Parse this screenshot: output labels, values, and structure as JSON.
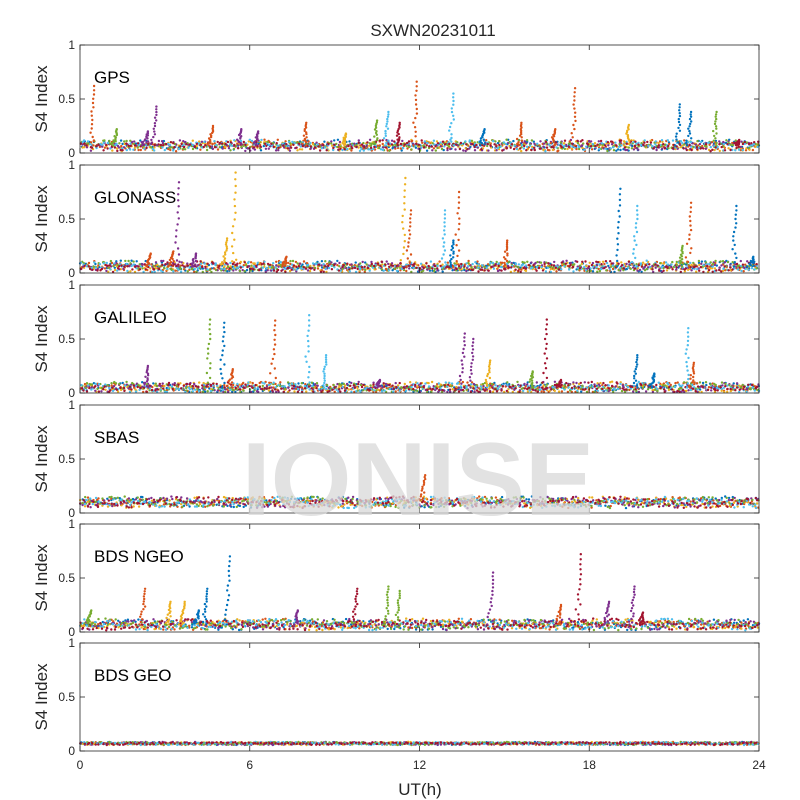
{
  "figure_title": "SXWN20231011",
  "watermark": "IONISE",
  "colors": [
    "#0072BD",
    "#D95319",
    "#EDB120",
    "#7E2F8E",
    "#77AC30",
    "#4DBEEE",
    "#A2142F"
  ],
  "chart_data": {
    "type": "scatter",
    "xlabel": "UT(h)",
    "ylabel": "S4 Index",
    "xlim": [
      0,
      24
    ],
    "xticks": [
      "0",
      "6",
      "12",
      "18",
      "24"
    ],
    "ylim": [
      0,
      1
    ],
    "yticks": [
      "0",
      "0.5",
      "1"
    ],
    "grid": false,
    "panels": [
      {
        "label": "GPS",
        "baseline": 0.07,
        "spikes": [
          [
            0.5,
            0.62,
            1
          ],
          [
            1.3,
            0.22,
            4
          ],
          [
            2.7,
            0.43,
            3
          ],
          [
            2.4,
            0.2,
            3
          ],
          [
            4.7,
            0.25,
            1
          ],
          [
            5.7,
            0.22,
            3
          ],
          [
            6.3,
            0.2,
            3
          ],
          [
            8.0,
            0.28,
            1
          ],
          [
            9.4,
            0.18,
            2
          ],
          [
            10.5,
            0.3,
            4
          ],
          [
            10.9,
            0.38,
            5
          ],
          [
            11.3,
            0.28,
            6
          ],
          [
            11.9,
            0.66,
            1
          ],
          [
            13.2,
            0.55,
            5
          ],
          [
            14.3,
            0.22,
            0
          ],
          [
            15.6,
            0.28,
            1
          ],
          [
            16.8,
            0.22,
            1
          ],
          [
            17.5,
            0.6,
            1
          ],
          [
            19.4,
            0.26,
            2
          ],
          [
            21.2,
            0.45,
            0
          ],
          [
            21.6,
            0.38,
            0
          ],
          [
            22.5,
            0.38,
            4
          ],
          [
            23.3,
            0.12,
            6
          ]
        ]
      },
      {
        "label": "GLONASS",
        "baseline": 0.06,
        "spikes": [
          [
            2.5,
            0.18,
            1
          ],
          [
            3.3,
            0.2,
            1
          ],
          [
            3.5,
            0.84,
            3
          ],
          [
            4.1,
            0.18,
            3
          ],
          [
            5.5,
            0.93,
            2
          ],
          [
            5.2,
            0.32,
            2
          ],
          [
            7.3,
            0.15,
            1
          ],
          [
            11.5,
            0.88,
            2
          ],
          [
            11.7,
            0.58,
            1
          ],
          [
            12.9,
            0.58,
            5
          ],
          [
            13.4,
            0.75,
            1
          ],
          [
            13.2,
            0.3,
            0
          ],
          [
            15.1,
            0.3,
            1
          ],
          [
            19.1,
            0.78,
            0
          ],
          [
            19.7,
            0.62,
            5
          ],
          [
            21.6,
            0.65,
            1
          ],
          [
            21.3,
            0.25,
            4
          ],
          [
            23.2,
            0.62,
            0
          ],
          [
            23.8,
            0.15,
            0
          ]
        ]
      },
      {
        "label": "GALILEO",
        "baseline": 0.05,
        "spikes": [
          [
            2.4,
            0.25,
            3
          ],
          [
            4.6,
            0.68,
            4
          ],
          [
            5.1,
            0.65,
            0
          ],
          [
            5.4,
            0.22,
            1
          ],
          [
            6.9,
            0.67,
            1
          ],
          [
            8.1,
            0.72,
            5
          ],
          [
            8.7,
            0.35,
            5
          ],
          [
            10.6,
            0.12,
            3
          ],
          [
            13.6,
            0.55,
            3
          ],
          [
            13.9,
            0.5,
            3
          ],
          [
            14.5,
            0.3,
            2
          ],
          [
            16.5,
            0.68,
            6
          ],
          [
            16.0,
            0.2,
            4
          ],
          [
            17.0,
            0.12,
            6
          ],
          [
            19.7,
            0.35,
            0
          ],
          [
            20.3,
            0.18,
            0
          ],
          [
            21.5,
            0.6,
            5
          ],
          [
            21.7,
            0.28,
            1
          ]
        ]
      },
      {
        "label": "SBAS",
        "baseline": 0.1,
        "spikes": [
          [
            12.2,
            0.35,
            1
          ]
        ]
      },
      {
        "label": "BDS NGEO",
        "baseline": 0.07,
        "spikes": [
          [
            0.4,
            0.2,
            4
          ],
          [
            2.3,
            0.4,
            1
          ],
          [
            3.2,
            0.28,
            2
          ],
          [
            3.7,
            0.28,
            2
          ],
          [
            4.5,
            0.4,
            0
          ],
          [
            4.2,
            0.2,
            0
          ],
          [
            7.7,
            0.2,
            3
          ],
          [
            9.8,
            0.4,
            6
          ],
          [
            10.9,
            0.42,
            4
          ],
          [
            11.3,
            0.38,
            4
          ],
          [
            14.6,
            0.55,
            3
          ],
          [
            17.0,
            0.25,
            1
          ],
          [
            17.7,
            0.72,
            6
          ],
          [
            18.7,
            0.28,
            3
          ],
          [
            19.6,
            0.42,
            3
          ],
          [
            19.9,
            0.18,
            6
          ],
          [
            5.3,
            0.7,
            0
          ]
        ]
      },
      {
        "label": "BDS GEO",
        "baseline": 0.07,
        "spikes": []
      }
    ]
  }
}
